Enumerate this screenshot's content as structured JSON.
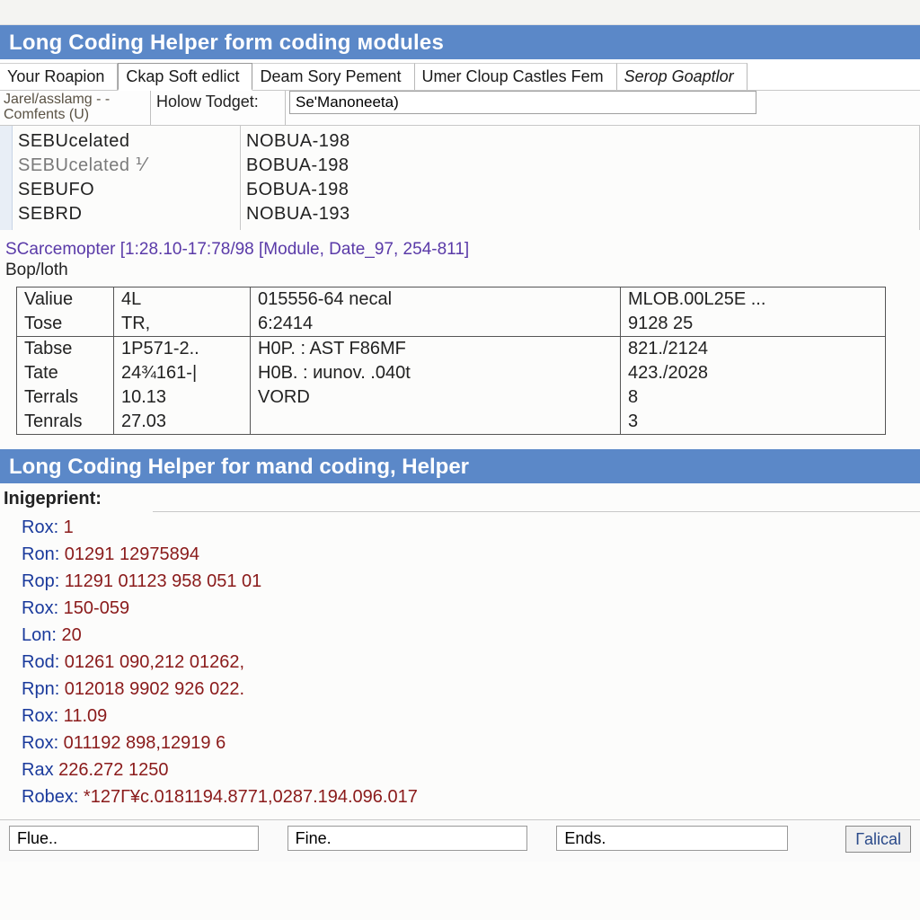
{
  "titlebar1": "Long Coding Helper form coding мodules",
  "tabs": [
    {
      "label": "Your Roapion",
      "active": false,
      "italic": false
    },
    {
      "label": "Ckap Soft edlict",
      "active": true,
      "italic": false
    },
    {
      "label": "Deam Sory Pement",
      "active": false,
      "italic": false
    },
    {
      "label": "Umer Cloup Castles Fem",
      "active": false,
      "italic": false
    },
    {
      "label": "Serop Goaptlor",
      "active": false,
      "italic": true
    }
  ],
  "subrow": {
    "cell_a_line1": "Jаrel/asslamg - -",
    "cell_a_line2": "Comfеnts (U)",
    "cell_b": "Holow Todget:",
    "select_value": "Se'Manoneеta)"
  },
  "list_left": [
    {
      "text": "SEBUcelated",
      "dim": false
    },
    {
      "text": "SEBUcelatеd  ⅟",
      "dim": true
    },
    {
      "text": "SEBUFO",
      "dim": false
    },
    {
      "text": "SEBRD",
      "dim": false
    }
  ],
  "list_right": [
    "NOBUA-198",
    "BOBUA-198",
    "БOBUA-198",
    "NOBUA-193"
  ],
  "status": {
    "prefix": "SCarcemopter ",
    "bracket": "[1:28.10-17:78/98 [Module, Date_97, 254-811]",
    "line2": "Bop/loth"
  },
  "table": {
    "rows": [
      [
        "Valiue",
        "4L",
        "015556-64 neсal",
        "МLOB.00L25E ..."
      ],
      [
        "Tose",
        "TR,",
        "6:2414",
        "9128 25"
      ],
      [
        "Tabse",
        "1P571-2..",
        "H0P. : AST F86MF",
        "821./2124"
      ],
      [
        "Tate",
        "24¾161-|",
        "H0B. : иunov. .040t",
        "423./2028"
      ],
      [
        "Terrals",
        "10.13",
        "VORD",
        "8"
      ],
      [
        "Tenrals",
        "27.03",
        "",
        "3"
      ]
    ],
    "sep_at": 2,
    "col_widths": [
      "108px",
      "152px",
      "412px",
      "auto"
    ]
  },
  "titlebar2": "Long Coding Helper for mand coding, Helper",
  "section_label": "Inigеprient:",
  "kv_lines": [
    {
      "k": "Rox:",
      "v": " 1"
    },
    {
      "k": "Ron:",
      "v": " 01291 12975894"
    },
    {
      "k": "Rop:",
      "v": " 11291 01123 958 051 01"
    },
    {
      "k": "Rox:",
      "v": " 150-059"
    },
    {
      "k": "Lon:",
      "v": " 20"
    },
    {
      "k": "Rod:",
      "v": " 01261 090,212 01262,"
    },
    {
      "k": "Rpn:",
      "v": " 012018 9902 926 022."
    },
    {
      "k": "Rox:",
      "v": " 11.09"
    },
    {
      "k": "Rox:",
      "v": " 011192 898,12919 6"
    },
    {
      "k": "Rax",
      "v": "  226.272 1250"
    },
    {
      "k": "Robex:",
      "v": " *127Г¥c.0181194.8771,0287.194.096.017"
    }
  ],
  "footer": {
    "f1": "Flue..",
    "f2": "Fine.",
    "f3": "Ends.",
    "button": "Гalical"
  },
  "colors": {
    "titlebar_bg": "#5b88c8",
    "titlebar_fg": "#ffffff",
    "purple": "#5a3aa8",
    "kv_key": "#1a3a9c",
    "kv_val": "#8a1a1a",
    "gutter": "#e8eef6"
  }
}
